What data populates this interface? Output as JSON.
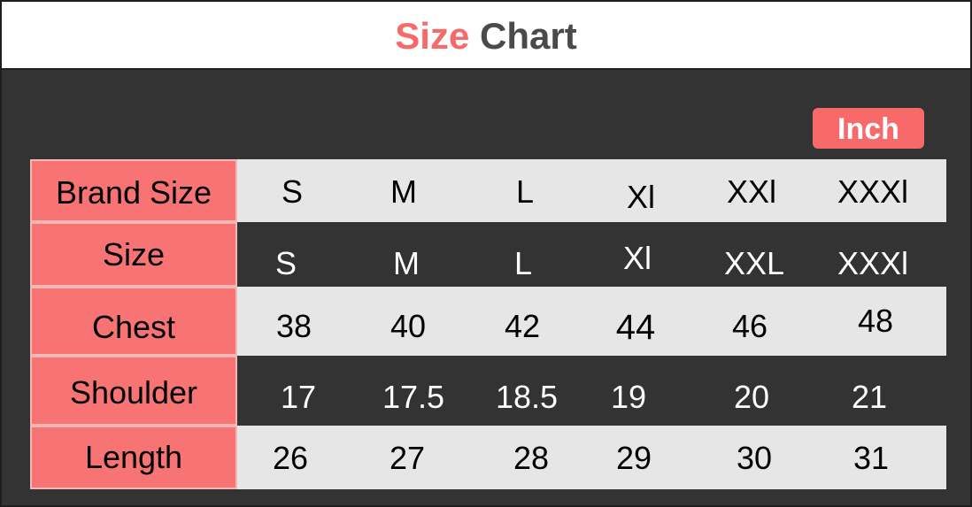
{
  "title": {
    "accent": "Size",
    "main": "Chart"
  },
  "unit": "Inch",
  "table": {
    "rows": [
      {
        "label": "Brand Size",
        "values": [
          "S",
          "M",
          "L",
          "Xl",
          "XXl",
          "XXXl"
        ]
      },
      {
        "label": "Size",
        "values": [
          "S",
          "M",
          "L",
          "Xl",
          "XXL",
          "XXXl"
        ]
      },
      {
        "label": "Chest",
        "values": [
          "38",
          "40",
          "42",
          "44",
          "46",
          "48"
        ]
      },
      {
        "label": "Shoulder",
        "values": [
          "17",
          "17.5",
          "18.5",
          "19",
          "20",
          "21"
        ]
      },
      {
        "label": "Length",
        "values": [
          "26",
          "27",
          "28",
          "29",
          "30",
          "31"
        ]
      }
    ]
  },
  "colors": {
    "accent": "#f86a6a",
    "label_bg": "#f87474",
    "dark_bg": "#333333",
    "light_row": "#e6e6e6",
    "title_text": "#4a4a4a"
  }
}
